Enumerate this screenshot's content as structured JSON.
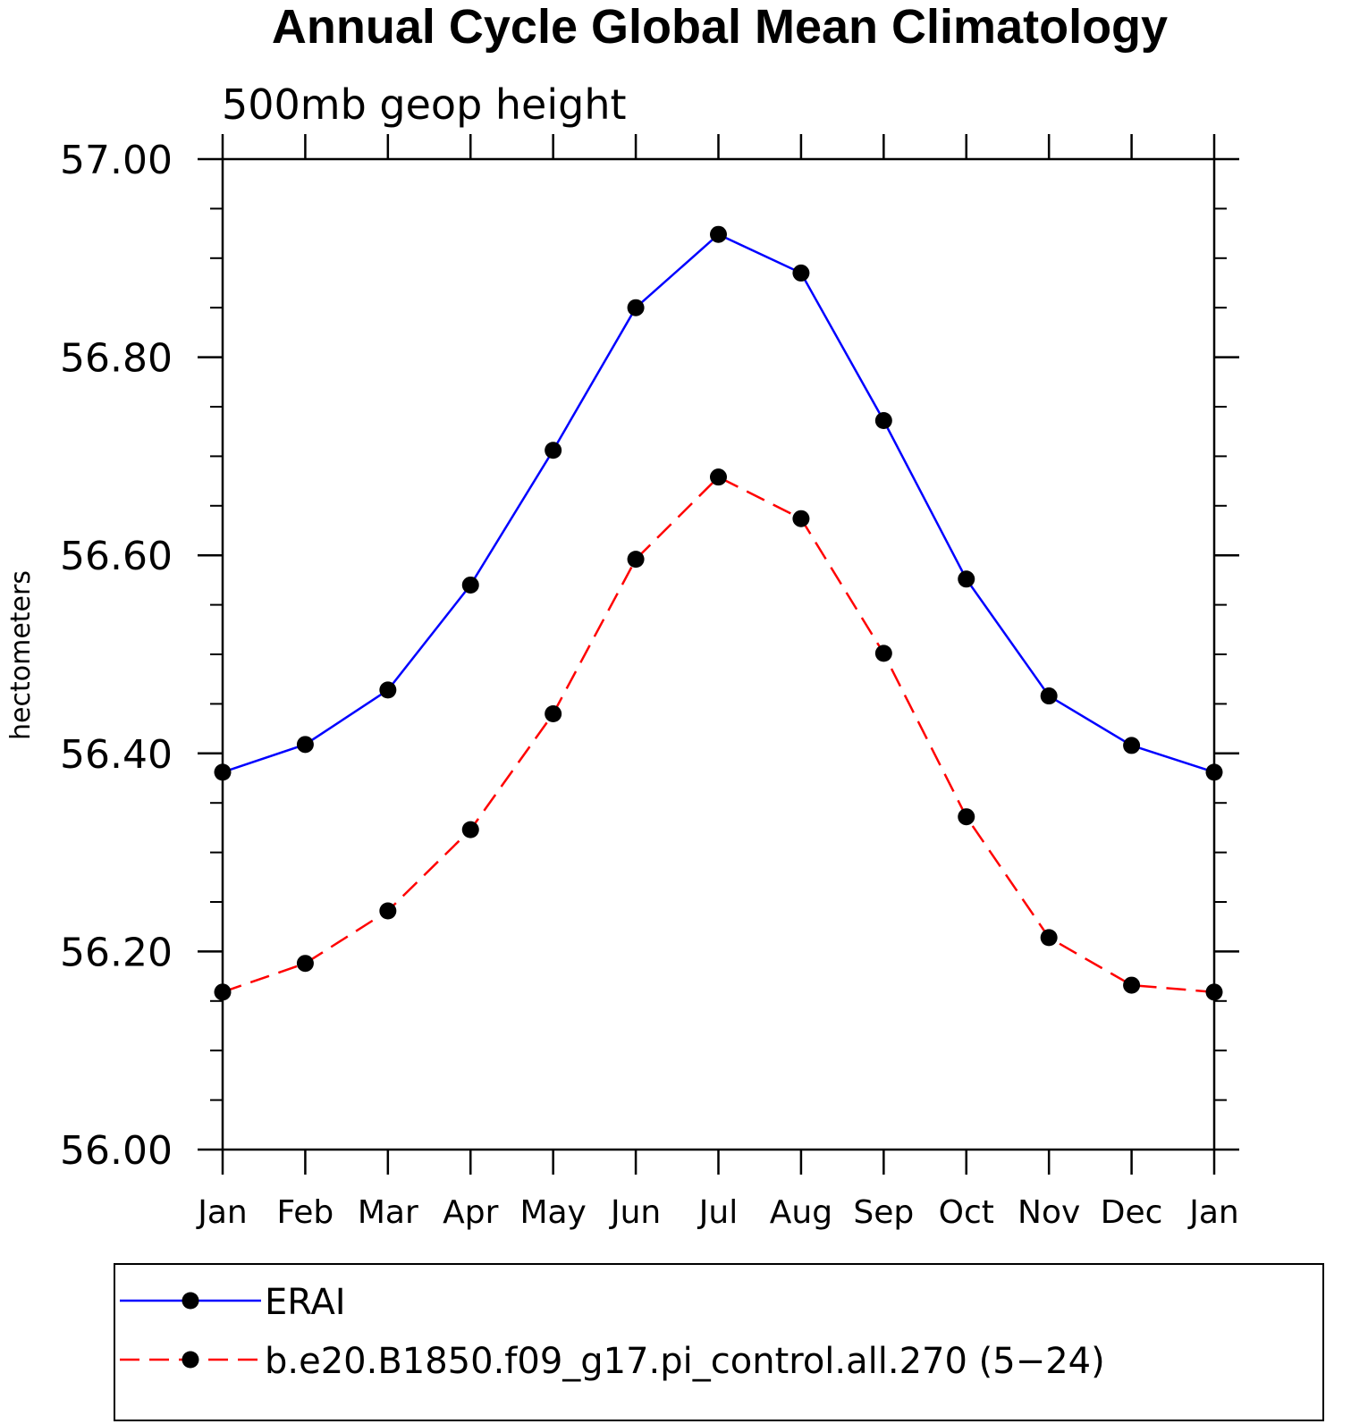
{
  "chart_data": {
    "type": "line",
    "title": "Annual Cycle Global Mean Climatology",
    "subtitle": "500mb geop height",
    "xlabel": "",
    "ylabel": "hectometers",
    "categories": [
      "Jan",
      "Feb",
      "Mar",
      "Apr",
      "May",
      "Jun",
      "Jul",
      "Aug",
      "Sep",
      "Oct",
      "Nov",
      "Dec",
      "Jan"
    ],
    "ylim": [
      56.0,
      57.0
    ],
    "yticks": [
      "56.00",
      "56.20",
      "56.40",
      "56.60",
      "56.80",
      "57.00"
    ],
    "yminor_step": 0.05,
    "grid": false,
    "legend_position": "bottom",
    "series": [
      {
        "name": "ERAI",
        "color": "#0000ff",
        "line_style": "solid",
        "marker": "filled-circle",
        "values": [
          56.381,
          56.409,
          56.464,
          56.57,
          56.706,
          56.85,
          56.924,
          56.885,
          56.736,
          56.576,
          56.458,
          56.408,
          56.381
        ]
      },
      {
        "name": "b.e20.B1850.f09_g17.pi_control.all.270 (5−24)",
        "color": "#ff0000",
        "line_style": "dashed",
        "marker": "filled-circle",
        "values": [
          56.159,
          56.188,
          56.241,
          56.323,
          56.44,
          56.596,
          56.679,
          56.637,
          56.501,
          56.336,
          56.214,
          56.166,
          56.159
        ]
      }
    ]
  }
}
